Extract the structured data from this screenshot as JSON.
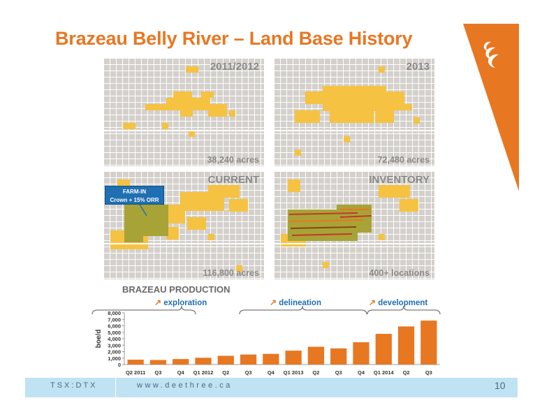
{
  "slide": {
    "title": "Brazeau Belly River – Land Base History",
    "ticker": "TSX:DTX",
    "website": "www.deethree.ca",
    "page_number": "10"
  },
  "colors": {
    "accent_orange": "#E87722",
    "land_yellow": "#F5C242",
    "farmin_blue": "#1F6FB2",
    "footer_blue": "#BFE3F2"
  },
  "maps": [
    {
      "label": "2011/2012",
      "acres": "38,240 acres"
    },
    {
      "label": "2013",
      "acres": "72,480 acres"
    },
    {
      "label": "CURRENT",
      "acres": "116,800 acres"
    },
    {
      "label": "INVENTORY",
      "acres": "400+ locations"
    }
  ],
  "farmin": {
    "line1": "FARM-IN",
    "line2": "Crown + 15% ORR"
  },
  "production": {
    "title": "BRAZEAU PRODUCTION",
    "phases": [
      "exploration",
      "delineation",
      "development"
    ]
  },
  "chart_data": {
    "type": "bar",
    "title": "BRAZEAU PRODUCTION",
    "ylabel": "boe/d",
    "xlabel": "",
    "categories": [
      "Q2 2011",
      "Q3",
      "Q4",
      "Q1 2012",
      "Q2",
      "Q3",
      "Q4",
      "Q1 2013",
      "Q2",
      "Q3",
      "Q4",
      "Q1 2014",
      "Q2",
      "Q3"
    ],
    "values": [
      750,
      700,
      850,
      1050,
      1350,
      1550,
      1650,
      2150,
      2750,
      2500,
      3450,
      4750,
      5900,
      6800
    ],
    "ylim": [
      0,
      8000
    ],
    "yticks": [
      "0",
      "1,000",
      "2,000",
      "3,000",
      "4,000",
      "5,000",
      "6,000",
      "7,000",
      "8,000"
    ],
    "bar_color": "#E87722",
    "grid": false
  }
}
